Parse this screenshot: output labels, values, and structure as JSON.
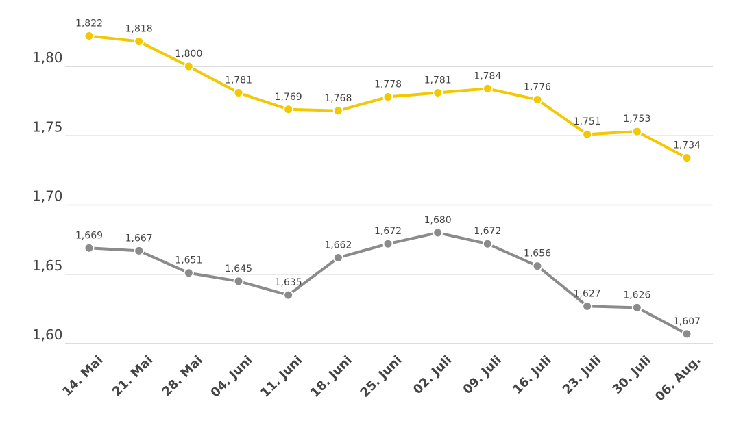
{
  "chart_data": {
    "type": "line",
    "categories": [
      "14. Mai",
      "21. Mai",
      "28. Mai",
      "04. Juni",
      "11. Juni",
      "18. Juni",
      "25. Juni",
      "02. Juli",
      "09. Juli",
      "16. Juli",
      "23. Juli",
      "30. Juli",
      "06. Aug."
    ],
    "series": [
      {
        "color": "#f2c800",
        "values": [
          1.822,
          1.818,
          1.8,
          1.781,
          1.769,
          1.768,
          1.778,
          1.781,
          1.784,
          1.776,
          1.751,
          1.753,
          1.734
        ],
        "value_labels": [
          "1,822",
          "1,818",
          "1,800",
          "1,781",
          "1,769",
          "1,768",
          "1,778",
          "1,781",
          "1,784",
          "1,776",
          "1,751",
          "1,753",
          "1,734"
        ]
      },
      {
        "color": "#8c8a8c",
        "values": [
          1.669,
          1.667,
          1.651,
          1.645,
          1.635,
          1.662,
          1.672,
          1.68,
          1.672,
          1.656,
          1.627,
          1.626,
          1.607
        ],
        "value_labels": [
          "1,669",
          "1,667",
          "1,651",
          "1,645",
          "1,635",
          "1,662",
          "1,672",
          "1,680",
          "1,672",
          "1,656",
          "1,627",
          "1,626",
          "1,607"
        ]
      }
    ],
    "ylim": [
      1.6,
      1.84
    ],
    "yticks": [
      {
        "value": 1.6,
        "label": "1,60"
      },
      {
        "value": 1.65,
        "label": "1,65"
      },
      {
        "value": 1.7,
        "label": "1,70"
      },
      {
        "value": 1.75,
        "label": "1,75"
      },
      {
        "value": 1.8,
        "label": "1,80"
      }
    ],
    "grid": true
  }
}
